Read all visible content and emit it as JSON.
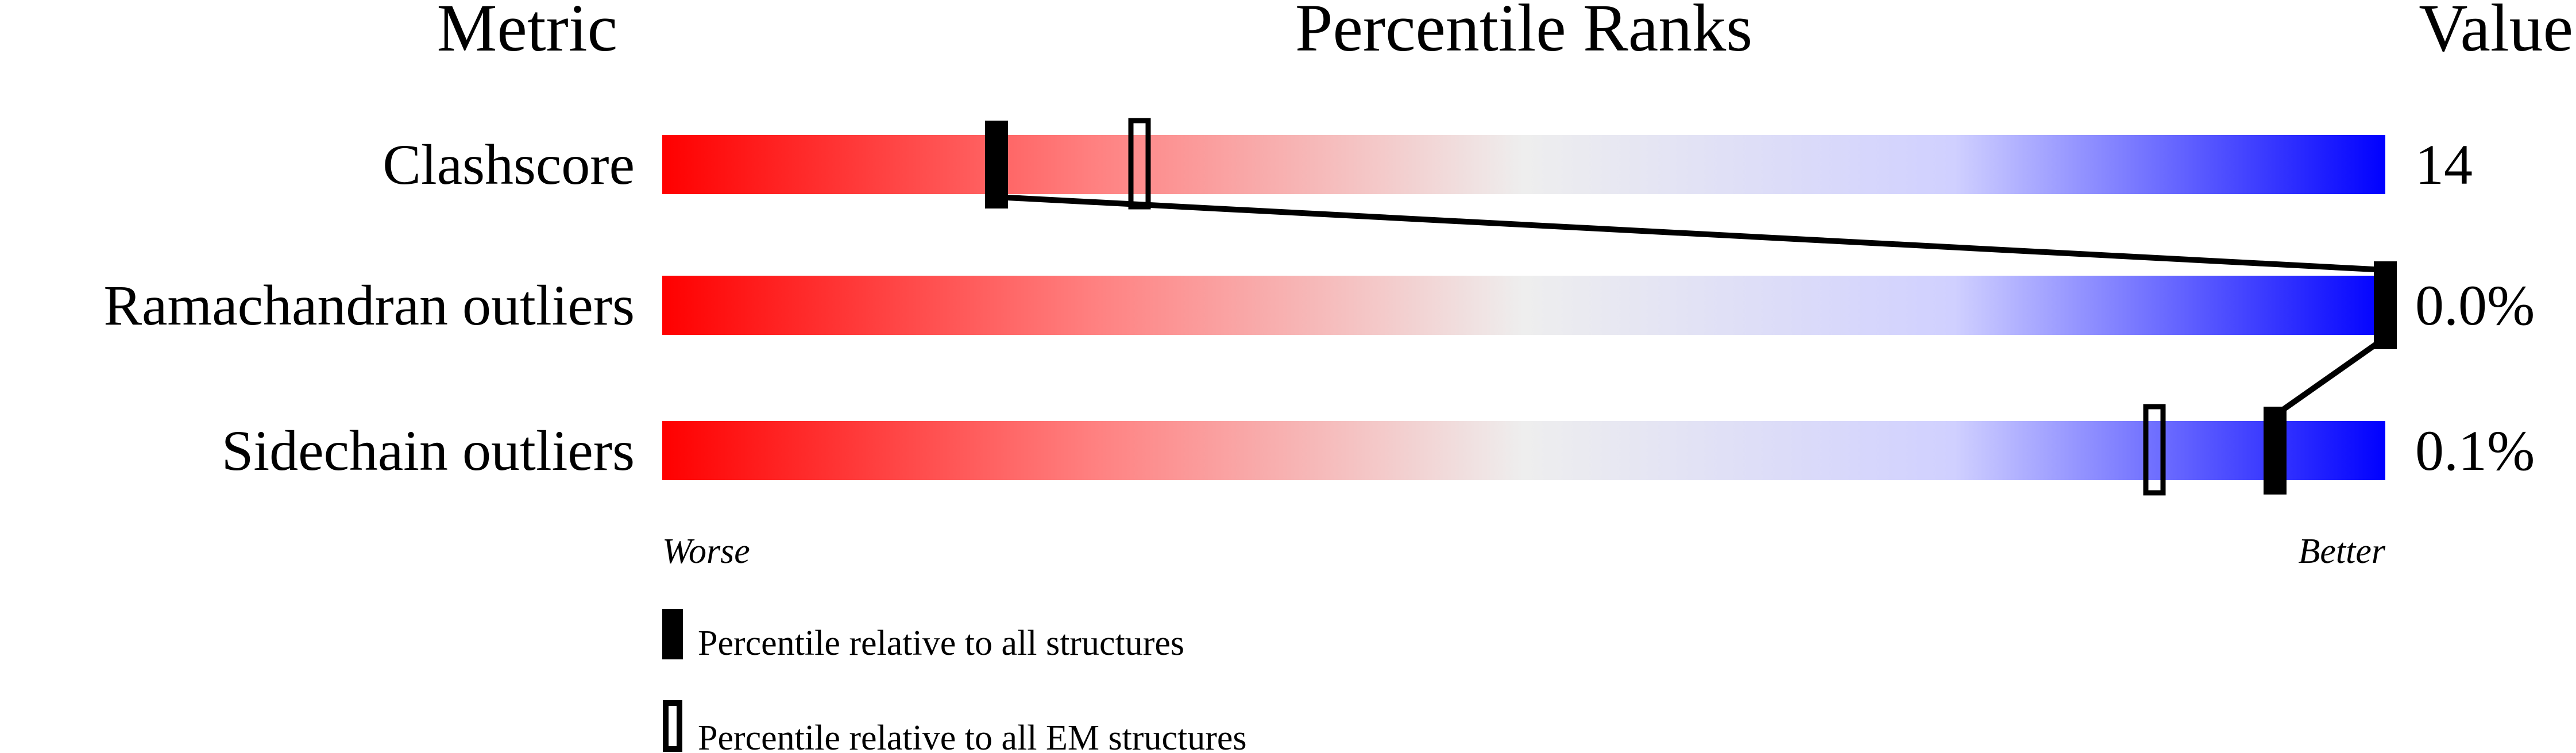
{
  "chart_data": {
    "type": "percentile-bar",
    "headers": {
      "metric": "Metric",
      "ranks": "Percentile Ranks",
      "value": "Value"
    },
    "xlim": [
      0,
      100
    ],
    "colors": {
      "worse": "#ff0000",
      "middle": "#eeeeee",
      "better": "#0000ff"
    },
    "rows": [
      {
        "metric": "Clashscore",
        "value": "14",
        "percentile_all": 19.4,
        "percentile_em": 27.7
      },
      {
        "metric": "Ramachandran outliers",
        "value": "0.0%",
        "percentile_all": 100,
        "percentile_em": null
      },
      {
        "metric": "Sidechain outliers",
        "value": "0.1%",
        "percentile_all": 93.6,
        "percentile_em": 86.6
      }
    ],
    "axis_labels": {
      "left": "Worse",
      "right": "Better"
    },
    "legend": [
      {
        "marker": "filled",
        "label": "Percentile relative to all structures"
      },
      {
        "marker": "open",
        "label": "Percentile relative to all EM structures"
      }
    ]
  }
}
